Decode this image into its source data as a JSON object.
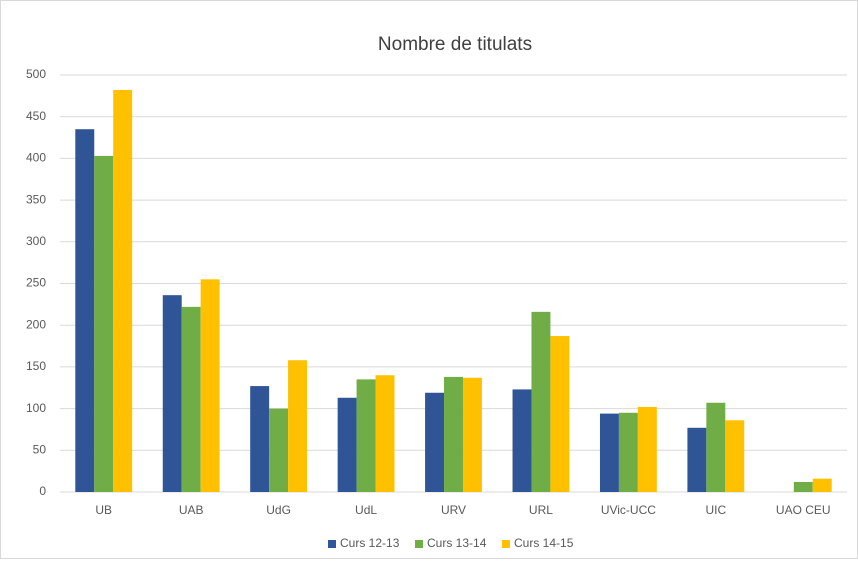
{
  "chart_data": {
    "type": "bar",
    "title": "Nombre de titulats",
    "categories": [
      "UB",
      "UAB",
      "UdG",
      "UdL",
      "URV",
      "URL",
      "UVic-UCC",
      "UIC",
      "UAO CEU"
    ],
    "series": [
      {
        "name": "Curs 12-13",
        "color": "#2f5597",
        "values": [
          435,
          236,
          127,
          113,
          119,
          123,
          94,
          77,
          null
        ]
      },
      {
        "name": "Curs 13-14",
        "color": "#70ad47",
        "values": [
          403,
          222,
          100,
          135,
          138,
          216,
          95,
          107,
          12
        ]
      },
      {
        "name": "Curs 14-15",
        "color": "#ffc000",
        "values": [
          482,
          255,
          158,
          140,
          137,
          187,
          102,
          86,
          16
        ]
      }
    ],
    "ylim": [
      0,
      500
    ],
    "yticks": [
      0,
      50,
      100,
      150,
      200,
      250,
      300,
      350,
      400,
      450,
      500
    ],
    "grid": true,
    "legend": "bottom"
  }
}
